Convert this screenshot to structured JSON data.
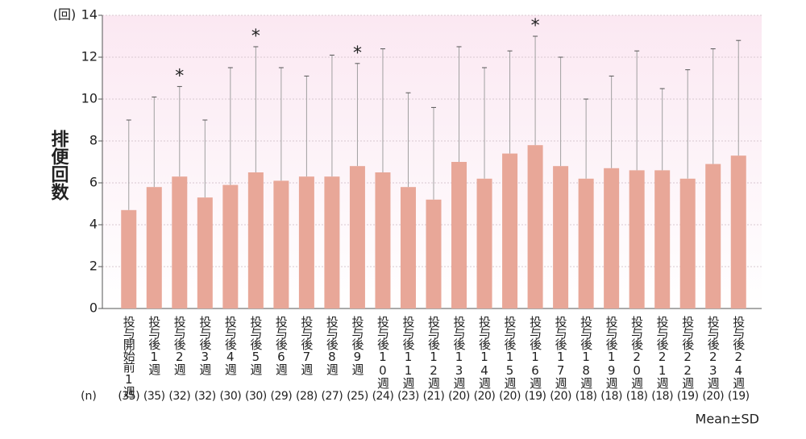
{
  "chart_data": {
    "type": "bar",
    "y_unit": "(回)",
    "y_label": "排便回数",
    "categories": [
      "投与開始前1週",
      "投与後1週",
      "投与後2週",
      "投与後3週",
      "投与後4週",
      "投与後5週",
      "投与後6週",
      "投与後7週",
      "投与後8週",
      "投与後9週",
      "投与後10週",
      "投与後11週",
      "投与後12週",
      "投与後13週",
      "投与後14週",
      "投与後15週",
      "投与後16週",
      "投与後17週",
      "投与後18週",
      "投与後19週",
      "投与後20週",
      "投与後21週",
      "投与後22週",
      "投与後23週",
      "投与後24週"
    ],
    "values": [
      4.7,
      5.8,
      6.3,
      5.3,
      5.9,
      6.5,
      6.1,
      6.3,
      6.3,
      6.8,
      6.5,
      5.8,
      5.2,
      7.0,
      6.2,
      7.4,
      7.8,
      6.8,
      6.2,
      6.7,
      6.6,
      6.6,
      6.2,
      6.9,
      7.3
    ],
    "errors": [
      4.3,
      4.3,
      4.3,
      3.7,
      5.6,
      6.0,
      5.4,
      4.8,
      5.8,
      4.9,
      5.9,
      4.5,
      4.4,
      5.5,
      5.3,
      4.9,
      5.2,
      5.2,
      3.8,
      4.4,
      5.7,
      3.9,
      5.2,
      5.5,
      5.5
    ],
    "n_header": "(n)",
    "n_labels": [
      "(35)",
      "(35)",
      "(32)",
      "(32)",
      "(30)",
      "(30)",
      "(29)",
      "(28)",
      "(27)",
      "(25)",
      "(24)",
      "(23)",
      "(21)",
      "(20)",
      "(20)",
      "(20)",
      "(19)",
      "(20)",
      "(18)",
      "(18)",
      "(18)",
      "(18)",
      "(19)",
      "(20)",
      "(19)"
    ],
    "annotations": [
      {
        "text": "*",
        "category": "投与後2週"
      },
      {
        "text": "*",
        "category": "投与後5週"
      },
      {
        "text": "*",
        "category": "投与後9週"
      },
      {
        "text": "*",
        "category": "投与後16週"
      }
    ],
    "note": "Mean±SD",
    "color": "#e8a798",
    "error_color": "#a0a0a0",
    "ylim": [
      0,
      14
    ],
    "yticks": [
      0,
      2,
      4,
      6,
      8,
      10,
      12,
      14
    ],
    "grid": true
  }
}
